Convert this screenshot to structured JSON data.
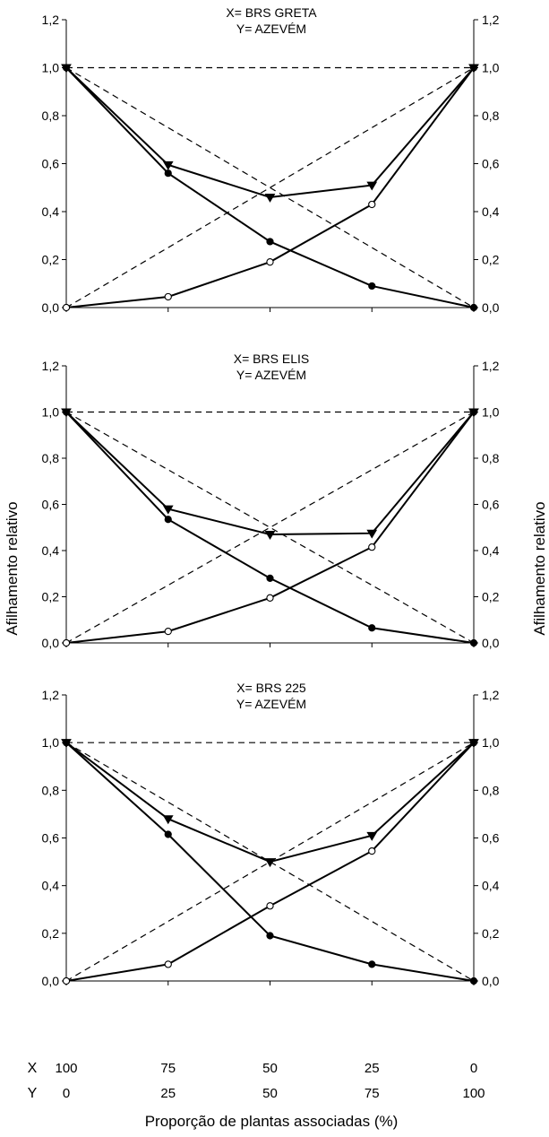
{
  "figure": {
    "ylabel_left": "Afilhamento relativo",
    "ylabel_right": "Afilhamento relativo",
    "xlabel": "Proporção de plantas associadas (%)",
    "x_row_label": "X",
    "y_row_label": "Y",
    "x_proportions": [
      "100",
      "75",
      "50",
      "25",
      "0"
    ],
    "y_proportions": [
      "0",
      "25",
      "50",
      "75",
      "100"
    ],
    "yticks": [
      "0,0",
      "0,2",
      "0,4",
      "0,6",
      "0,8",
      "1,0",
      "1,2"
    ],
    "colors": {
      "ink": "#000000",
      "open_marker_fill": "#ffffff"
    }
  },
  "chart_data": [
    {
      "type": "line",
      "title_line1": "X= BRS GRETA",
      "title_line2": "Y= AZEVÉM",
      "ylim": [
        0,
        1.2
      ],
      "x": [
        100,
        75,
        50,
        25,
        0
      ],
      "series": [
        {
          "role": "X",
          "marker": "filled-circle",
          "values": [
            1.0,
            0.56,
            0.275,
            0.09,
            0.0
          ]
        },
        {
          "role": "Y",
          "marker": "open-circle",
          "values": [
            0.0,
            0.045,
            0.19,
            0.43,
            1.0
          ]
        },
        {
          "role": "X+Y",
          "marker": "triangle-down",
          "values": [
            1.0,
            0.595,
            0.46,
            0.51,
            1.0
          ]
        }
      ]
    },
    {
      "type": "line",
      "title_line1": "X= BRS ELIS",
      "title_line2": "Y= AZEVÉM",
      "ylim": [
        0,
        1.2
      ],
      "x": [
        100,
        75,
        50,
        25,
        0
      ],
      "series": [
        {
          "role": "X",
          "marker": "filled-circle",
          "values": [
            1.0,
            0.535,
            0.28,
            0.065,
            0.0
          ]
        },
        {
          "role": "Y",
          "marker": "open-circle",
          "values": [
            0.0,
            0.05,
            0.195,
            0.415,
            1.0
          ]
        },
        {
          "role": "X+Y",
          "marker": "triangle-down",
          "values": [
            1.0,
            0.58,
            0.47,
            0.475,
            1.0
          ]
        }
      ]
    },
    {
      "type": "line",
      "title_line1": "X= BRS 225",
      "title_line2": "Y= AZEVÉM",
      "ylim": [
        0,
        1.2
      ],
      "x": [
        100,
        75,
        50,
        25,
        0
      ],
      "series": [
        {
          "role": "X",
          "marker": "filled-circle",
          "values": [
            1.0,
            0.615,
            0.19,
            0.07,
            0.0
          ]
        },
        {
          "role": "Y",
          "marker": "open-circle",
          "values": [
            0.0,
            0.07,
            0.315,
            0.545,
            1.0
          ]
        },
        {
          "role": "X+Y",
          "marker": "triangle-down",
          "values": [
            1.0,
            0.68,
            0.5,
            0.61,
            1.0
          ]
        }
      ]
    }
  ]
}
